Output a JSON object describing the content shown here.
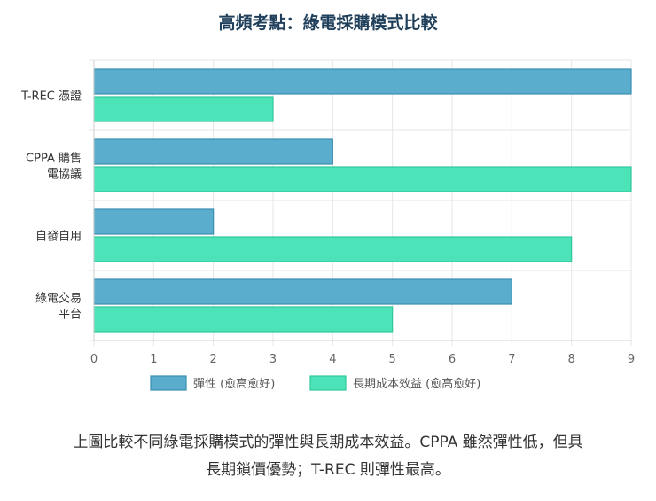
{
  "colors": {
    "series_1_fill": "#5aadcc",
    "series_1_stroke": "#3a8eb0",
    "series_2_fill": "#4de3b8",
    "series_2_stroke": "#2fc89c",
    "title": "#1f3f5a"
  },
  "chart_data": {
    "type": "bar",
    "orientation": "horizontal",
    "title": "高頻考點：綠電採購模式比較",
    "categories": [
      [
        "T-REC 憑證"
      ],
      [
        "CPPA 購售",
        "電協議"
      ],
      [
        "自發自用"
      ],
      [
        "綠電交易",
        "平台"
      ]
    ],
    "series": [
      {
        "name": "彈性 (愈高愈好)",
        "values": [
          9,
          4,
          2,
          7
        ]
      },
      {
        "name": "長期成本效益 (愈高愈好)",
        "values": [
          3,
          9,
          8,
          5
        ]
      }
    ],
    "xlim": [
      0,
      9
    ],
    "xticks": [
      "0",
      "1",
      "2",
      "3",
      "4",
      "5",
      "6",
      "7",
      "8",
      "9"
    ],
    "grid": true,
    "legend_position": "bottom"
  },
  "caption": {
    "line1": "上圖比較不同綠電採購模式的彈性與長期成本效益。CPPA 雖然彈性低，但具",
    "line2": "長期鎖價優勢；T-REC 則彈性最高。"
  }
}
